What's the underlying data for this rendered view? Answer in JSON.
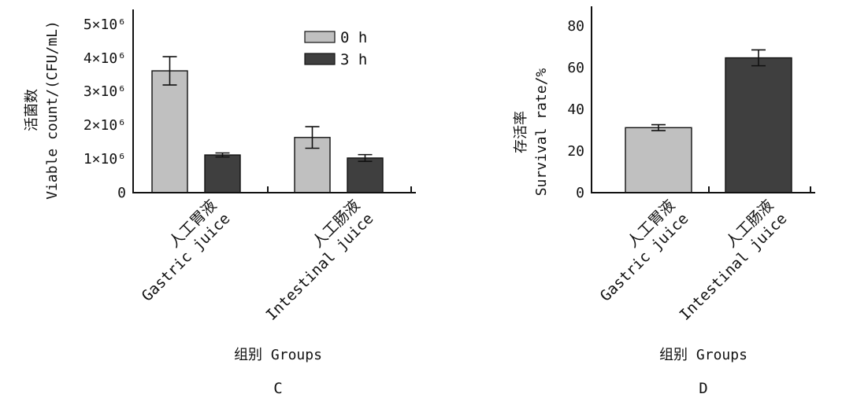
{
  "chart_data": [
    {
      "panel": "C",
      "type": "bar",
      "ylabel_cn": "活菌数",
      "ylabel_en": "Viable count/(CFU/mL)",
      "xlabel": "组别 Groups",
      "y_ticks": [
        "0",
        "1×10⁶",
        "2×10⁶",
        "3×10⁶",
        "4×10⁶",
        "5×10⁶"
      ],
      "ylim": [
        0,
        5000000
      ],
      "categories": [
        {
          "cn": "人工胃液",
          "en": "Gastric juice"
        },
        {
          "cn": "人工肠液",
          "en": "Intestinal juice"
        }
      ],
      "series": [
        {
          "name": "0 h",
          "color": "#c0c0c0",
          "values": [
            3620000,
            1640000
          ],
          "errors": [
            420000,
            320000
          ]
        },
        {
          "name": "3 h",
          "color": "#3f3f3f",
          "values": [
            1120000,
            1030000
          ],
          "errors": [
            60000,
            100000
          ]
        }
      ],
      "legend_position": "top-right"
    },
    {
      "panel": "D",
      "type": "bar",
      "ylabel_cn": "存活率",
      "ylabel_en": "Survival rate/%",
      "xlabel": "组别 Groups",
      "y_ticks": [
        "0",
        "20",
        "40",
        "60",
        "80"
      ],
      "ylim": [
        0,
        80
      ],
      "categories": [
        {
          "cn": "人工胃液",
          "en": "Gastric juice"
        },
        {
          "cn": "人工肠液",
          "en": "Intestinal juice"
        }
      ],
      "values": [
        31.2,
        64.7
      ],
      "errors": [
        1.4,
        3.8
      ],
      "colors": [
        "#c0c0c0",
        "#3f3f3f"
      ]
    }
  ]
}
